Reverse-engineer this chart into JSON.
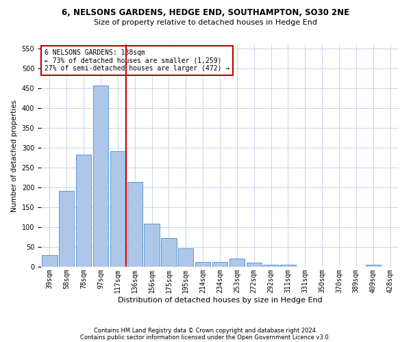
{
  "title": "6, NELSONS GARDENS, HEDGE END, SOUTHAMPTON, SO30 2NE",
  "subtitle": "Size of property relative to detached houses in Hedge End",
  "xlabel": "Distribution of detached houses by size in Hedge End",
  "ylabel": "Number of detached properties",
  "bar_labels": [
    "39sqm",
    "58sqm",
    "78sqm",
    "97sqm",
    "117sqm",
    "136sqm",
    "156sqm",
    "175sqm",
    "195sqm",
    "214sqm",
    "234sqm",
    "253sqm",
    "272sqm",
    "292sqm",
    "311sqm",
    "331sqm",
    "350sqm",
    "370sqm",
    "389sqm",
    "409sqm",
    "428sqm"
  ],
  "bar_values": [
    30,
    192,
    283,
    456,
    291,
    213,
    109,
    73,
    46,
    12,
    12,
    20,
    10,
    6,
    5,
    0,
    0,
    0,
    0,
    5,
    0
  ],
  "bar_color": "#aec6e8",
  "bar_edge_color": "#5b9bd5",
  "vline_color": "#c00000",
  "ylim": [
    0,
    560
  ],
  "yticks": [
    0,
    50,
    100,
    150,
    200,
    250,
    300,
    350,
    400,
    450,
    500,
    550
  ],
  "annotation_box_text": "6 NELSONS GARDENS: 138sqm\n← 73% of detached houses are smaller (1,259)\n27% of semi-detached houses are larger (472) →",
  "annotation_box_color": "#c00000",
  "footer_line1": "Contains HM Land Registry data © Crown copyright and database right 2024.",
  "footer_line2": "Contains public sector information licensed under the Open Government Licence v3.0.",
  "bg_color": "#ffffff",
  "grid_color": "#c8d4e8",
  "title_fontsize": 8.5,
  "subtitle_fontsize": 8.0,
  "ylabel_fontsize": 7.5,
  "xlabel_fontsize": 8.0,
  "tick_fontsize": 7.0,
  "annot_fontsize": 7.0,
  "footer_fontsize": 6.0,
  "vline_bar_index": 4.5
}
